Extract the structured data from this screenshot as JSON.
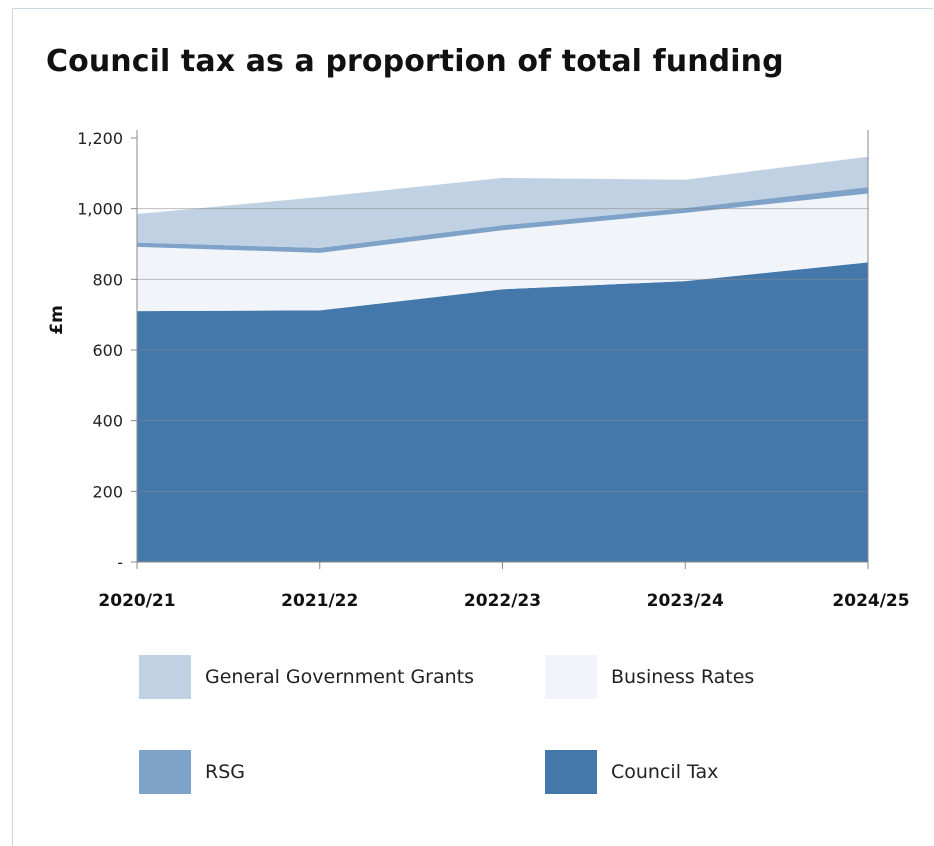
{
  "title": "Council tax as a proportion of total funding",
  "chart_data": {
    "type": "area",
    "stacked": true,
    "title": "Council tax as a proportion of total funding",
    "ylabel": "£m",
    "xlabel": "",
    "categories": [
      "2020/21",
      "2021/22",
      "2022/23",
      "2023/24",
      "2024/25"
    ],
    "ylim": [
      0,
      1200
    ],
    "y_ticks": [
      0,
      200,
      400,
      600,
      800,
      1000,
      1200
    ],
    "y_tick_labels": [
      "-",
      "200",
      "400",
      "600",
      "800",
      "1,000",
      "1,200"
    ],
    "grid": "y-major",
    "legend_position": "bottom",
    "series": [
      {
        "name": "Council Tax",
        "values": [
          710,
          712,
          772,
          795,
          848
        ],
        "color": "#4478ab"
      },
      {
        "name": "Business Rates",
        "values": [
          182,
          163,
          167,
          193,
          195
        ],
        "color": "#f1f5fa"
      },
      {
        "name": "RSG",
        "values": [
          12,
          14,
          14,
          14,
          18
        ],
        "color": "#7fa3c8"
      },
      {
        "name": "General Government Grants",
        "values": [
          81,
          144,
          134,
          80,
          86
        ],
        "color": "#c0d1e3"
      }
    ]
  },
  "legend": [
    {
      "label": "General Government Grants",
      "color": "#c0d1e3"
    },
    {
      "label": "Business Rates",
      "color": "#f1f5fa"
    },
    {
      "label": "RSG",
      "color": "#7fa3c8"
    },
    {
      "label": "Council Tax",
      "color": "#4478ab"
    }
  ]
}
